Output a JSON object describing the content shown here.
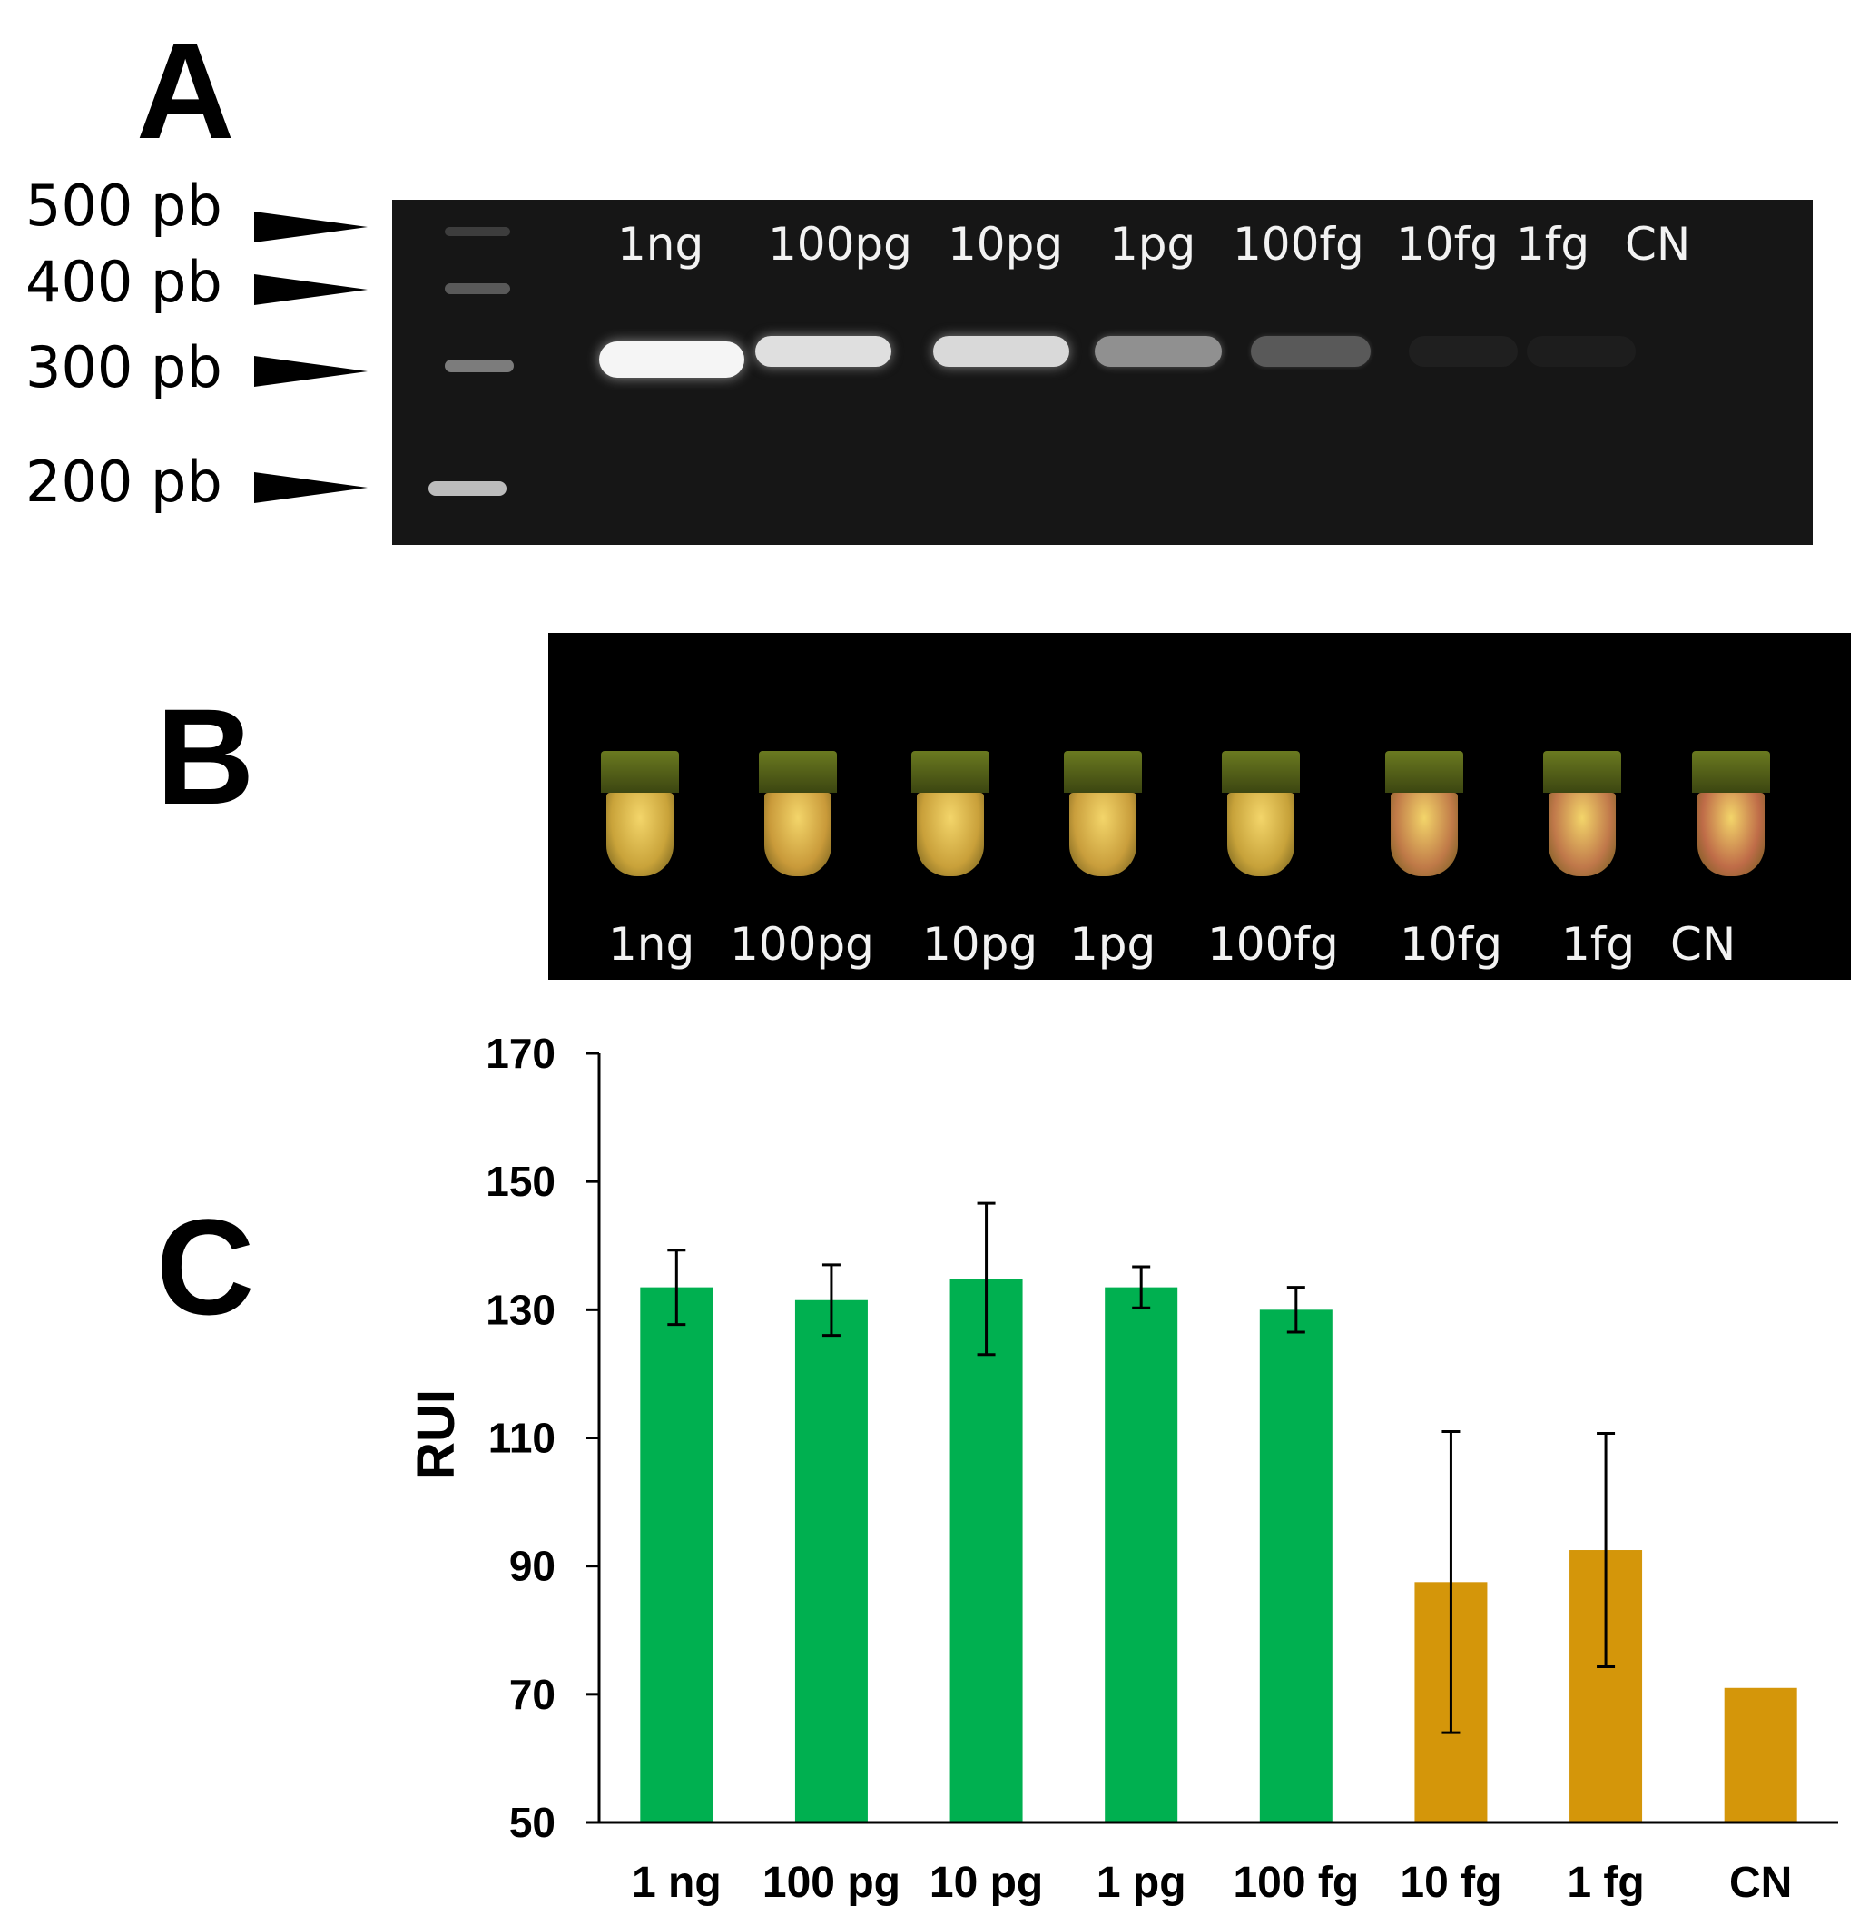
{
  "panels": {
    "a": "A",
    "b": "B",
    "c": "C"
  },
  "gel": {
    "markers": [
      "500 pb",
      "400 pb",
      "300 pb",
      "200 pb"
    ],
    "lanes": [
      "1ng",
      "100pg",
      "10pg",
      "1pg",
      "100fg",
      "10fg",
      "1fg",
      "CN"
    ],
    "band_intensity": [
      1.0,
      0.9,
      0.88,
      0.55,
      0.3,
      0.04,
      0.03,
      0.0
    ]
  },
  "tubes": {
    "labels": [
      "1ng",
      "100pg",
      "10pg",
      "1pg",
      "100fg",
      "10fg",
      "1fg",
      "CN"
    ],
    "colors": [
      "#c9a33a",
      "#c99a3a",
      "#c9a03a",
      "#c99e3c",
      "#c7a23a",
      "#c07a48",
      "#c0784a",
      "#bf6c48"
    ]
  },
  "chart_data": {
    "type": "bar",
    "categories": [
      "1 ng",
      "100 pg",
      "10 pg",
      "1 pg",
      "100 fg",
      "10 fg",
      "1 fg",
      "CN"
    ],
    "values": [
      133.5,
      131.5,
      134.8,
      133.5,
      130,
      87.5,
      92.5,
      71
    ],
    "error": [
      5.8,
      5.5,
      11.8,
      3.2,
      3.5,
      23.5,
      18.2,
      0
    ],
    "bar_colors": [
      "#00b050",
      "#00b050",
      "#00b050",
      "#00b050",
      "#00b050",
      "#d4960a",
      "#d4960a",
      "#d4960a"
    ],
    "ylabel": "RUI",
    "xlabel": "",
    "ylim": [
      50,
      170
    ],
    "yticks": [
      50,
      70,
      90,
      110,
      130,
      150,
      170
    ],
    "grid": false
  }
}
